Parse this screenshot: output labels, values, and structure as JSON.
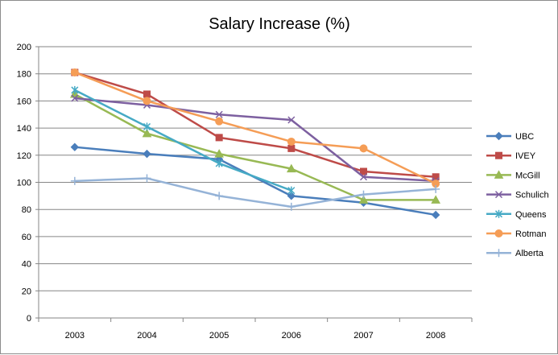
{
  "chart_data": {
    "type": "line",
    "title": "Salary Increase (%)",
    "xlabel": "",
    "ylabel": "",
    "categories": [
      "2003",
      "2004",
      "2005",
      "2006",
      "2007",
      "2008"
    ],
    "ylim": [
      0,
      200
    ],
    "yticks": [
      0,
      20,
      40,
      60,
      80,
      100,
      120,
      140,
      160,
      180,
      200
    ],
    "grid": true,
    "legend_position": "right",
    "series": [
      {
        "name": "UBC",
        "color": "#4a7ebb",
        "marker": "diamond",
        "values": [
          126,
          121,
          117,
          90,
          85,
          76
        ]
      },
      {
        "name": "IVEY",
        "color": "#be4b48",
        "marker": "square",
        "values": [
          181,
          165,
          133,
          125,
          108,
          104
        ]
      },
      {
        "name": "McGill",
        "color": "#98b954",
        "marker": "triangle",
        "values": [
          165,
          136,
          121,
          110,
          87,
          87
        ]
      },
      {
        "name": "Schulich",
        "color": "#7d60a0",
        "marker": "x",
        "values": [
          162,
          157,
          150,
          146,
          104,
          101
        ]
      },
      {
        "name": "Queens",
        "color": "#46aac5",
        "marker": "star",
        "values": [
          168,
          141,
          114,
          94,
          null,
          null
        ]
      },
      {
        "name": "Rotman",
        "color": "#f59d56",
        "marker": "circle",
        "values": [
          181,
          160,
          145,
          130,
          125,
          99
        ]
      },
      {
        "name": "Alberta",
        "color": "#95b3d7",
        "marker": "plus",
        "values": [
          101,
          103,
          90,
          82,
          91,
          95
        ]
      }
    ]
  }
}
